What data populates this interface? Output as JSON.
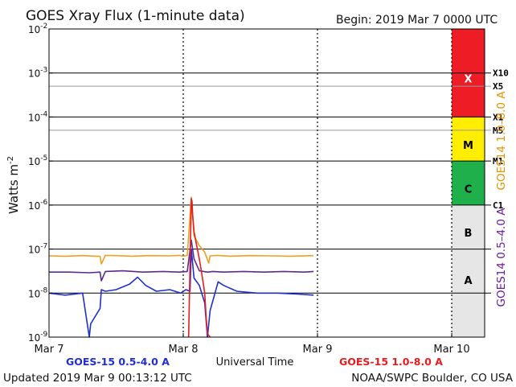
{
  "header": {
    "title": "GOES Xray Flux (1-minute data)",
    "begin": "Begin:  2019 Mar 7 0000 UTC"
  },
  "footer": {
    "updated": "Updated 2019 Mar  9 00:13:12 UTC",
    "credit": "NOAA/SWPC Boulder, CO USA"
  },
  "chart_data": {
    "type": "line",
    "title": "GOES Xray Flux (1-minute data)",
    "xlabel": "Universal Time",
    "ylabel_base": "Watts m",
    "ylabel_exp": "-2",
    "yscale": "log",
    "ylim": [
      1e-09,
      0.01
    ],
    "x_unit": "days since 2019 Mar 7 0000 UTC",
    "xlim": [
      0,
      3
    ],
    "x_ticks": [
      {
        "label": "Mar 7",
        "value": 0
      },
      {
        "label": "Mar 8",
        "value": 1
      },
      {
        "label": "Mar 9",
        "value": 2
      },
      {
        "label": "Mar 10",
        "value": 3
      }
    ],
    "y_ticks": [
      {
        "base": "10",
        "exp": "-9",
        "value": 1e-09
      },
      {
        "base": "10",
        "exp": "-8",
        "value": 1e-08
      },
      {
        "base": "10",
        "exp": "-7",
        "value": 1e-07
      },
      {
        "base": "10",
        "exp": "-6",
        "value": 1e-06
      },
      {
        "base": "10",
        "exp": "-5",
        "value": 1e-05
      },
      {
        "base": "10",
        "exp": "-4",
        "value": 0.0001
      },
      {
        "base": "10",
        "exp": "-3",
        "value": 0.001
      },
      {
        "base": "10",
        "exp": "-2",
        "value": 0.01
      }
    ],
    "flare_levels": [
      {
        "label": "X10",
        "value": 0.001
      },
      {
        "label": "X5",
        "value": 0.0005
      },
      {
        "label": "X1",
        "value": 0.0001
      },
      {
        "label": "M5",
        "value": 5e-05
      },
      {
        "label": "M1",
        "value": 1e-05
      },
      {
        "label": "C1",
        "value": 1e-06
      }
    ],
    "flare_classes": [
      {
        "label": "X",
        "from": 0.0001,
        "to": 0.01,
        "color": "#ee1c24"
      },
      {
        "label": "M",
        "from": 1e-05,
        "to": 0.0001,
        "color": "#ffee00"
      },
      {
        "label": "C",
        "from": 1e-06,
        "to": 1e-05,
        "color": "#1fb04b"
      },
      {
        "label": "B",
        "from": 1e-07,
        "to": 1e-06,
        "color": "#e6e6e6"
      },
      {
        "label": "A",
        "from": 1e-09,
        "to": 1e-07,
        "color": "#e6e6e6"
      }
    ],
    "right_axis_labels": [
      {
        "text": "GOES14 1.0–8.0 A",
        "color": "#e59400"
      },
      {
        "text": "GOES14 0.5–4.0 A",
        "color": "#6a1b9a"
      }
    ],
    "legend": [
      {
        "text": "GOES-15 0.5-4.0 A",
        "color": "#1f2fd0"
      },
      {
        "text": "GOES-15 1.0-8.0 A",
        "color": "#e81c1c"
      }
    ],
    "series": [
      {
        "name": "GOES14 1.0-8.0 A",
        "color": "#f0a020",
        "x": [
          0.0,
          0.12,
          0.25,
          0.38,
          0.39,
          0.42,
          0.5,
          0.62,
          0.75,
          0.9,
          0.97,
          1.0,
          1.03,
          1.06,
          1.08,
          1.12,
          1.16,
          1.19,
          1.2,
          1.25,
          1.35,
          1.5,
          1.65,
          1.8,
          1.97
        ],
        "y": [
          7e-08,
          6.9e-08,
          7.1e-08,
          6.8e-08,
          4.6e-08,
          7.2e-08,
          7.1e-08,
          6.9e-08,
          7.1e-08,
          7e-08,
          7.2e-08,
          6.9e-08,
          7.2e-08,
          1.5e-06,
          2e-07,
          1.2e-07,
          8.5e-08,
          4.8e-08,
          7e-08,
          7.2e-08,
          6.9e-08,
          7.1e-08,
          7e-08,
          6.9e-08,
          7.1e-08
        ]
      },
      {
        "name": "GOES14 0.5-4.0 A",
        "color": "#5b2c8c",
        "x": [
          0.0,
          0.15,
          0.3,
          0.38,
          0.39,
          0.42,
          0.55,
          0.7,
          0.85,
          0.97,
          1.03,
          1.06,
          1.08,
          1.12,
          1.18,
          1.22,
          1.3,
          1.45,
          1.6,
          1.75,
          1.9,
          1.97
        ],
        "y": [
          3e-08,
          3e-08,
          2.9e-08,
          3e-08,
          1.9e-08,
          3.1e-08,
          3.2e-08,
          3e-08,
          3.1e-08,
          3e-08,
          3.1e-08,
          1.6e-07,
          6e-08,
          3.2e-08,
          3e-08,
          3.1e-08,
          3e-08,
          3.1e-08,
          3e-08,
          3.1e-08,
          3e-08,
          3.1e-08
        ]
      },
      {
        "name": "GOES-15 0.5-4.0 A",
        "color": "#1f2fd0",
        "x": [
          0.0,
          0.12,
          0.25,
          0.28,
          0.3,
          0.31,
          0.38,
          0.39,
          0.42,
          0.5,
          0.6,
          0.66,
          0.72,
          0.8,
          0.9,
          0.98,
          1.02,
          1.05,
          1.06,
          1.08,
          1.12,
          1.16,
          1.18,
          1.2,
          1.26,
          1.3,
          1.4,
          1.55,
          1.7,
          1.85,
          1.97
        ],
        "y": [
          1e-08,
          9e-09,
          1e-08,
          2.5e-09,
          8e-10,
          2e-09,
          4.5e-09,
          1.2e-08,
          1.1e-08,
          1.2e-08,
          1.6e-08,
          2.3e-08,
          1.5e-08,
          1.1e-08,
          1.2e-08,
          1e-08,
          1.2e-08,
          1.1e-08,
          1e-07,
          2.2e-08,
          1.5e-08,
          6e-09,
          1e-09,
          4e-09,
          1.8e-08,
          1.5e-08,
          1.1e-08,
          1e-08,
          1e-08,
          9.5e-09,
          9e-09
        ]
      },
      {
        "name": "GOES-15 1.0-8.0 A",
        "color": "#e81c1c",
        "x": [
          1.04,
          1.05,
          1.06,
          1.065,
          1.07,
          1.08,
          1.1,
          1.12,
          1.14,
          1.16,
          1.17,
          1.18,
          1.2
        ],
        "y": [
          1e-09,
          4e-08,
          1.4e-06,
          1.2e-06,
          6e-07,
          2.5e-07,
          1.2e-07,
          6e-08,
          2.5e-08,
          1e-08,
          3e-09,
          1.2e-09,
          1e-09
        ]
      }
    ]
  }
}
